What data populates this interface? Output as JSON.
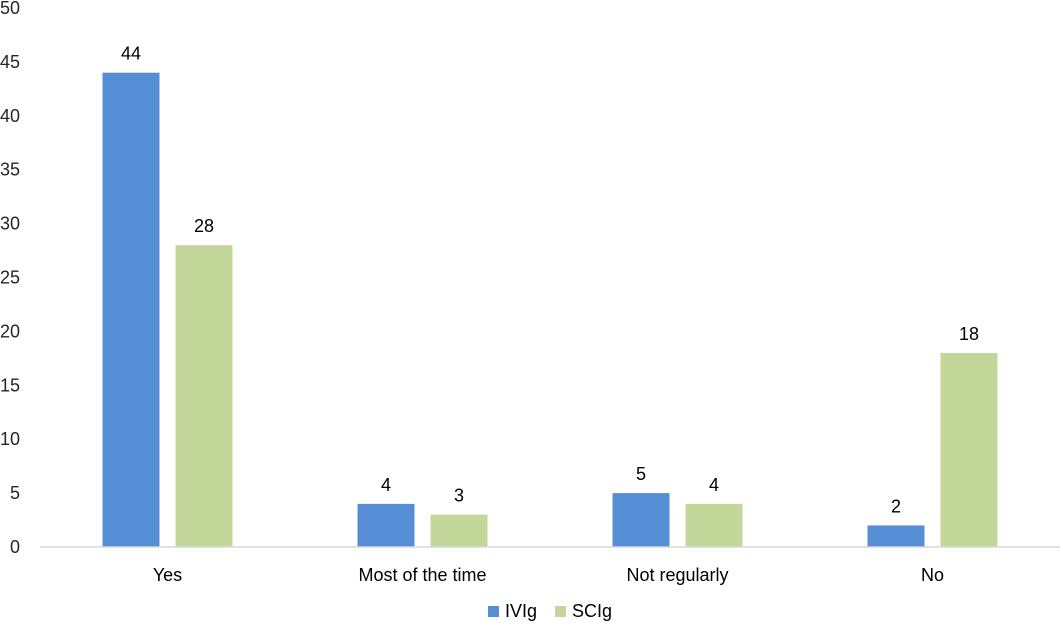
{
  "chart_data": {
    "type": "bar",
    "title": "",
    "xlabel": "",
    "ylabel": "",
    "categories": [
      "Yes",
      "Most of the time",
      "Not regularly",
      "No"
    ],
    "series": [
      {
        "name": "IVIg",
        "color": "#558ed5",
        "values": [
          44,
          4,
          5,
          2
        ]
      },
      {
        "name": "SCIg",
        "color": "#c4d79b",
        "values": [
          28,
          3,
          4,
          18
        ]
      }
    ],
    "ylim": [
      0,
      50
    ],
    "yticks": [
      0,
      5,
      10,
      15,
      20,
      25,
      30,
      35,
      40,
      45,
      50
    ],
    "grid": false,
    "legend_position": "bottom",
    "data_labels": true
  }
}
